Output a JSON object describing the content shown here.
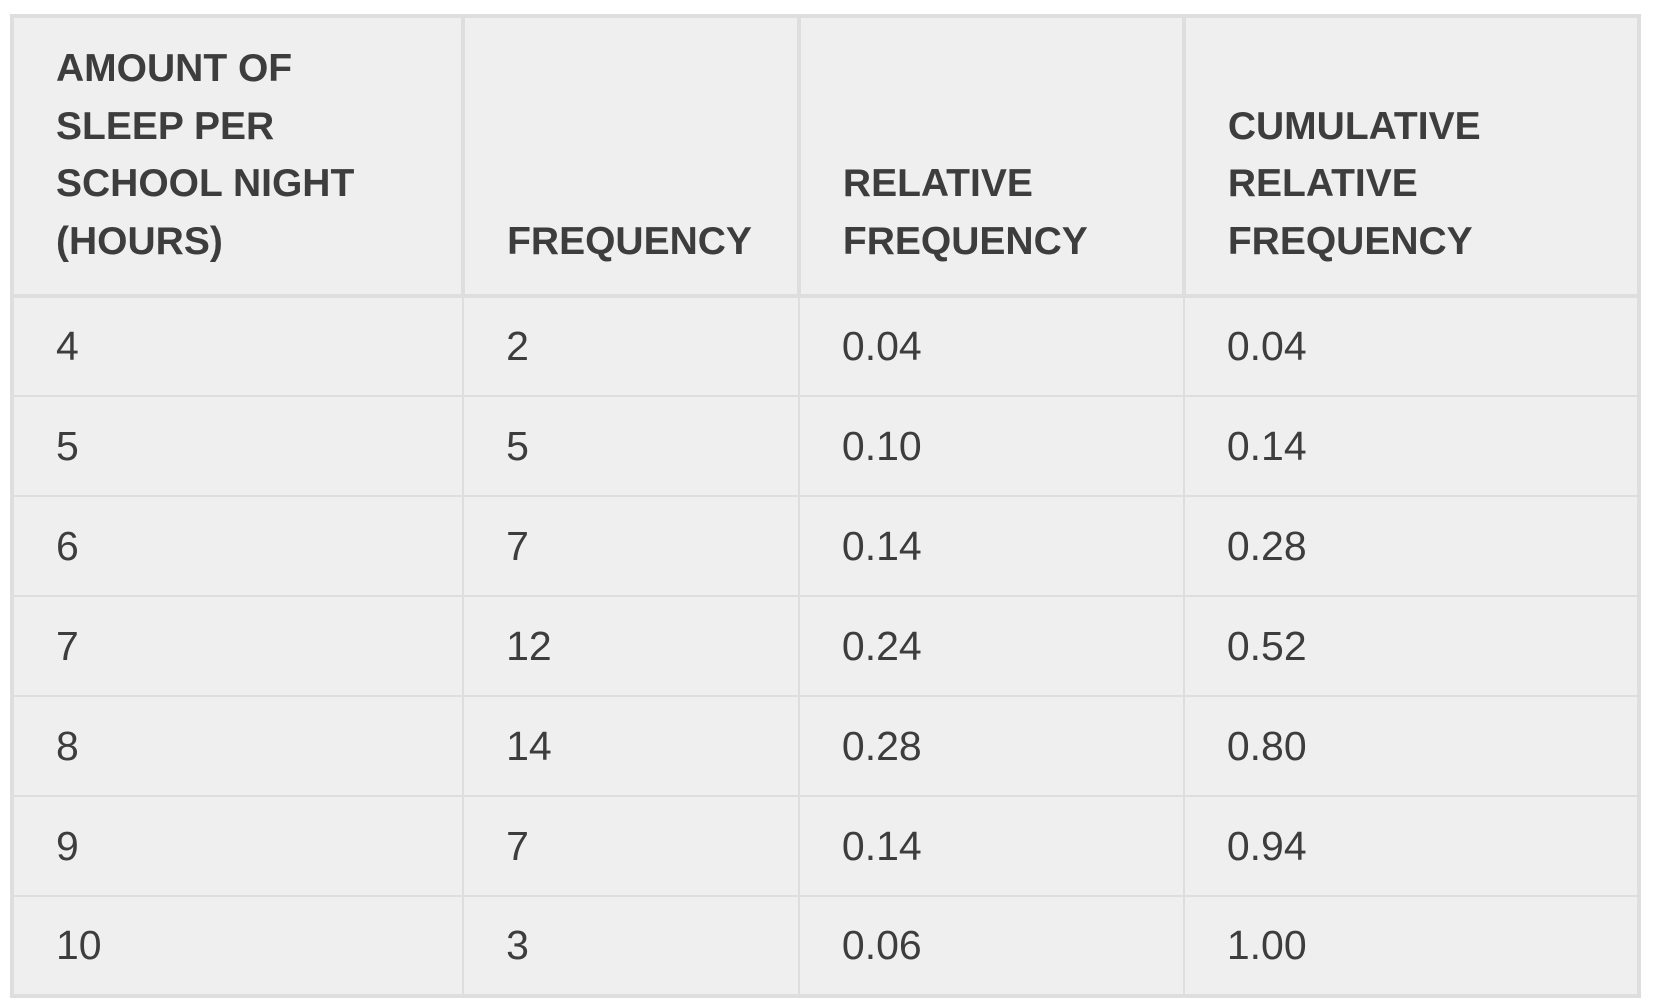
{
  "table": {
    "headers": [
      [
        "AMOUNT OF",
        "SLEEP PER",
        "SCHOOL NIGHT",
        "(HOURS)"
      ],
      [
        "FREQUENCY"
      ],
      [
        "RELATIVE",
        "FREQUENCY"
      ],
      [
        "CUMULATIVE",
        "RELATIVE",
        "FREQUENCY"
      ]
    ],
    "rows": [
      [
        "4",
        "2",
        "0.04",
        "0.04"
      ],
      [
        "5",
        "5",
        "0.10",
        "0.14"
      ],
      [
        "6",
        "7",
        "0.14",
        "0.28"
      ],
      [
        "7",
        "12",
        "0.24",
        "0.52"
      ],
      [
        "8",
        "14",
        "0.28",
        "0.80"
      ],
      [
        "9",
        "7",
        "0.14",
        "0.94"
      ],
      [
        "10",
        "3",
        "0.06",
        "1.00"
      ]
    ]
  }
}
